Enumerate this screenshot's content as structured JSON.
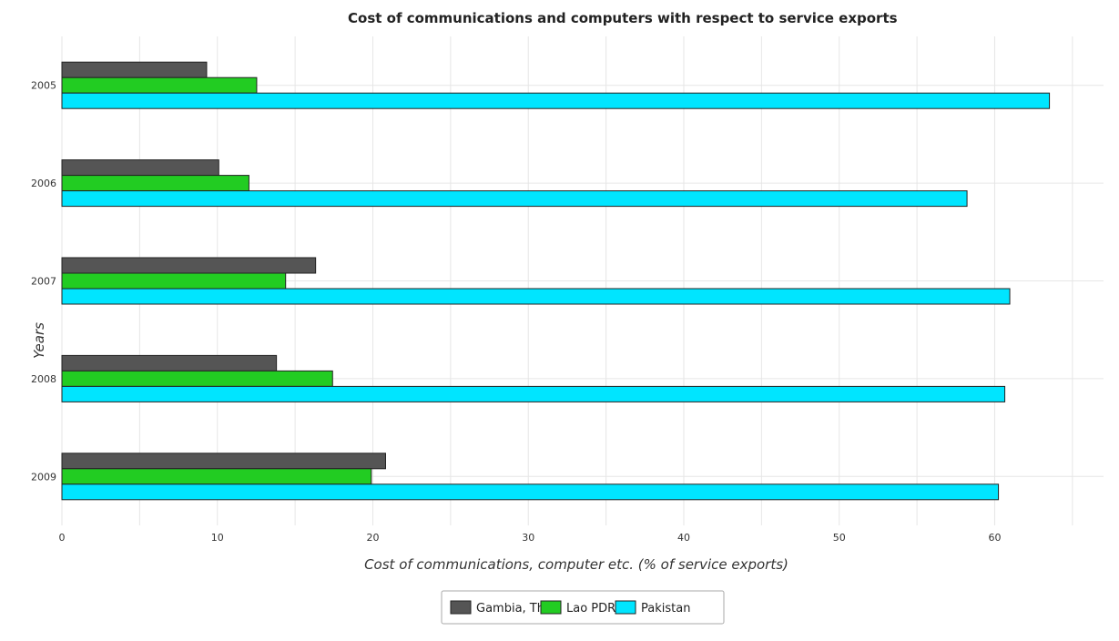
{
  "chart_data": {
    "type": "bar",
    "orientation": "horizontal",
    "title": "Cost of communications and computers with respect to service exports",
    "xlabel": "Cost of communications, computer etc. (% of service exports)",
    "ylabel": "Years",
    "xlim": [
      0,
      67
    ],
    "xticks": [
      0,
      10,
      20,
      30,
      40,
      50,
      60
    ],
    "xtick_labels": [
      "0",
      "10",
      "20",
      "30",
      "40",
      "50",
      "60"
    ],
    "categories": [
      "2005",
      "2006",
      "2007",
      "2008",
      "2009"
    ],
    "grid": true,
    "legend_position": "bottom-center",
    "series": [
      {
        "name": "Gambia, The",
        "color": "#555555",
        "values": [
          9.31,
          10.09,
          16.32,
          13.8,
          20.82
        ]
      },
      {
        "name": "Lao PDR",
        "color": "#22cc22",
        "values": [
          12.53,
          12.03,
          14.39,
          17.41,
          19.9
        ]
      },
      {
        "name": "Pakistan",
        "color": "#00e5ff",
        "values": [
          63.52,
          58.22,
          60.97,
          60.65,
          60.24
        ]
      }
    ]
  }
}
